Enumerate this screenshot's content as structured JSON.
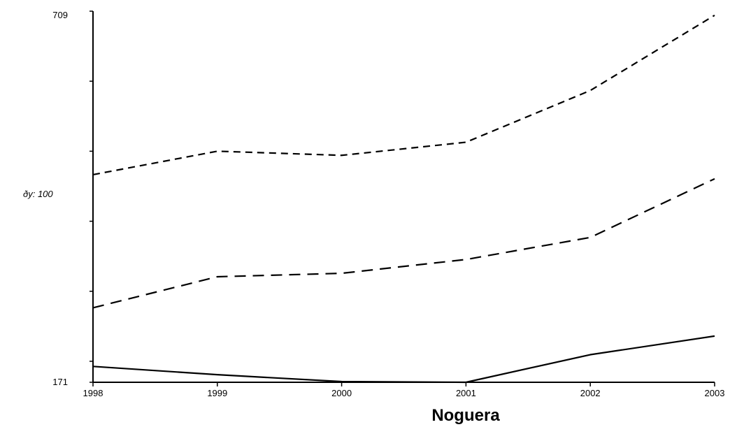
{
  "chart_data": {
    "type": "line",
    "title": "",
    "xlabel": "Noguera",
    "ylabel": "ðy: 100",
    "x": [
      "1998",
      "1999",
      "2000",
      "2001",
      "2002",
      "2003"
    ],
    "y_ticks_labeled": [
      "171",
      "709"
    ],
    "ylim": [
      171,
      709
    ],
    "grid": false,
    "series": [
      {
        "style": "solid",
        "values": [
          194,
          182,
          172,
          171,
          211,
          238
        ]
      },
      {
        "style": "long-dash",
        "values": [
          279,
          324,
          329,
          349,
          381,
          466
        ]
      },
      {
        "style": "short-dash",
        "values": [
          472,
          506,
          500,
          519,
          594,
          703
        ]
      }
    ]
  }
}
